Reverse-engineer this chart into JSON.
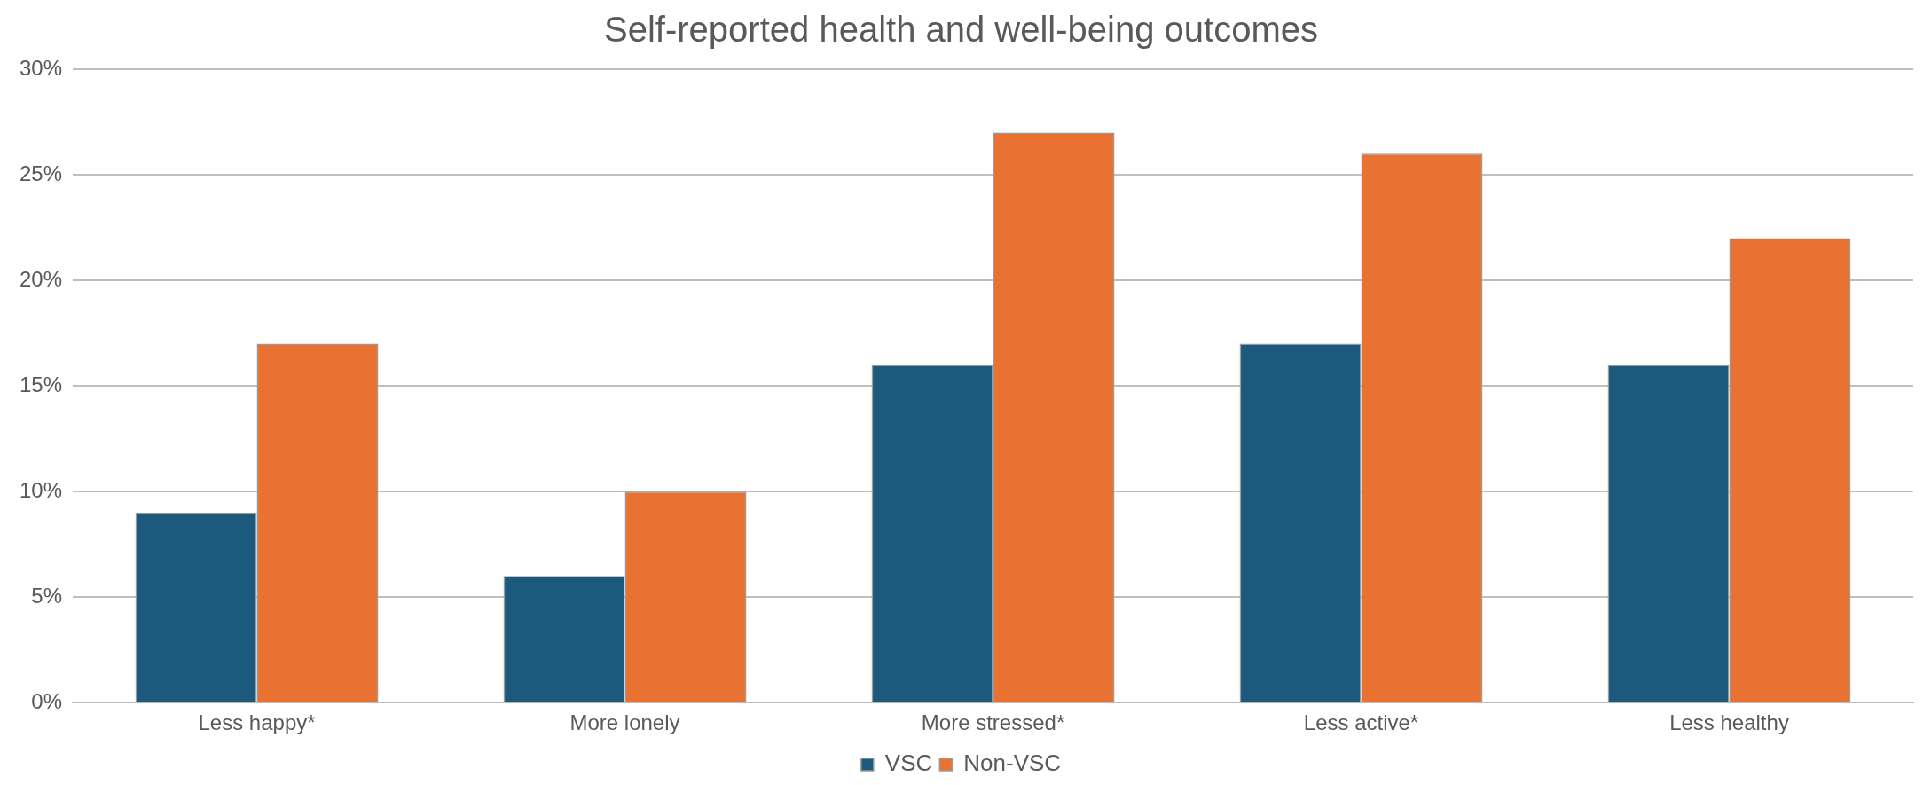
{
  "chart_data": {
    "type": "bar",
    "title": "Self-reported health and well-being outcomes",
    "categories": [
      "Less happy*",
      "More lonely",
      "More stressed*",
      "Less active*",
      "Less healthy"
    ],
    "series": [
      {
        "name": "VSC",
        "color": "#1b5a7c",
        "values": [
          9,
          6,
          16,
          17,
          16
        ]
      },
      {
        "name": "Non-VSC",
        "color": "#e97132",
        "values": [
          17,
          10,
          27,
          26,
          22
        ]
      }
    ],
    "ylim": [
      0,
      30
    ],
    "yticks": [
      {
        "value": 0,
        "label": "0%"
      },
      {
        "value": 5,
        "label": "5%"
      },
      {
        "value": 10,
        "label": "10%"
      },
      {
        "value": 15,
        "label": "15%"
      },
      {
        "value": 20,
        "label": "20%"
      },
      {
        "value": 25,
        "label": "25%"
      },
      {
        "value": 30,
        "label": "30%"
      }
    ],
    "grid": "y",
    "legend": "bottom"
  }
}
